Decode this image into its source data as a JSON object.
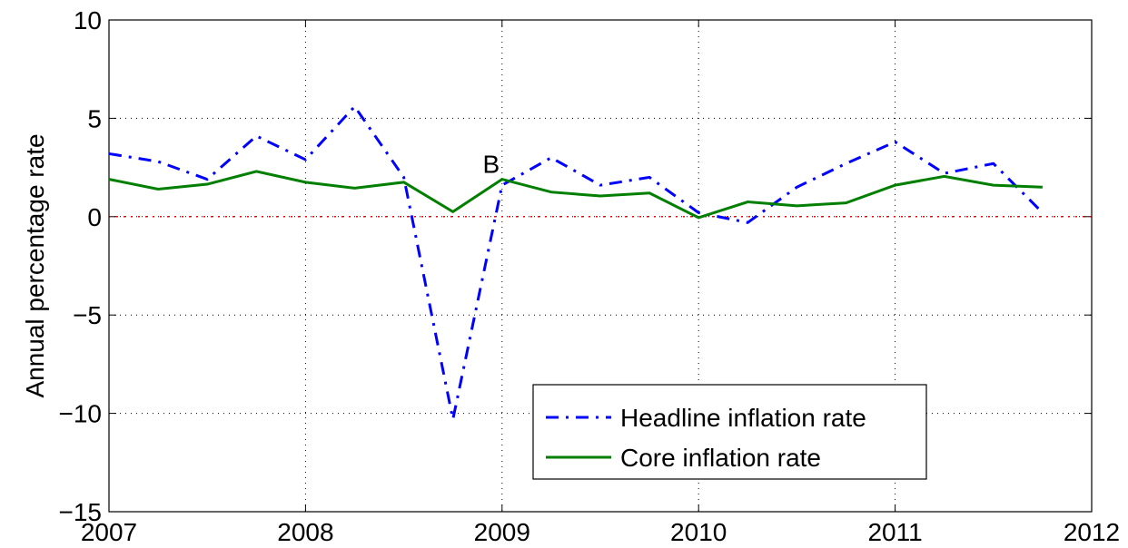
{
  "chart_data": {
    "type": "line",
    "y_label": "Annual percentage rate",
    "x": [
      2007,
      2007.25,
      2007.5,
      2007.75,
      2008,
      2008.25,
      2008.5,
      2008.75,
      2009,
      2009.25,
      2009.5,
      2009.75,
      2010,
      2010.25,
      2010.5,
      2010.75,
      2011,
      2011.25,
      2011.5,
      2011.75
    ],
    "series": [
      {
        "name": "Headline inflation rate",
        "color": "#0000ff",
        "dash": "dash-dot",
        "values": [
          3.2,
          2.8,
          1.9,
          4.1,
          2.9,
          5.6,
          2.0,
          -10.3,
          1.6,
          3.0,
          1.6,
          2.0,
          0.2,
          -0.3,
          1.5,
          2.7,
          3.8,
          2.2,
          2.7,
          0.2
        ]
      },
      {
        "name": "Core inflation rate",
        "color": "#007f00",
        "dash": "solid",
        "values": [
          1.9,
          1.4,
          1.65,
          2.3,
          1.75,
          1.45,
          1.75,
          0.25,
          1.9,
          1.25,
          1.05,
          1.2,
          -0.05,
          0.75,
          0.55,
          0.7,
          1.6,
          2.05,
          1.6,
          1.5
        ]
      }
    ],
    "annotations": [
      {
        "text": "B",
        "x": 2009,
        "y": 2.7
      }
    ],
    "xlim": [
      2007,
      2012
    ],
    "xticks": [
      2007,
      2008,
      2009,
      2010,
      2011,
      2012
    ],
    "ylim": [
      -15,
      10
    ],
    "yticks": [
      {
        "value": -15,
        "label": "−15"
      },
      {
        "value": -10,
        "label": "−10"
      },
      {
        "value": -5,
        "label": "−5"
      },
      0,
      5,
      10
    ],
    "grid": true,
    "zero_line_color": "#ff0000",
    "legend": "lower right"
  }
}
